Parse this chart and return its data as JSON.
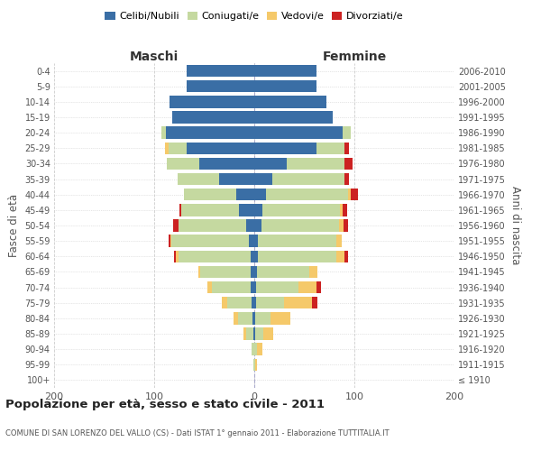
{
  "age_groups": [
    "100+",
    "95-99",
    "90-94",
    "85-89",
    "80-84",
    "75-79",
    "70-74",
    "65-69",
    "60-64",
    "55-59",
    "50-54",
    "45-49",
    "40-44",
    "35-39",
    "30-34",
    "25-29",
    "20-24",
    "15-19",
    "10-14",
    "5-9",
    "0-4"
  ],
  "birth_years": [
    "≤ 1910",
    "1911-1915",
    "1916-1920",
    "1921-1925",
    "1926-1930",
    "1931-1935",
    "1936-1940",
    "1941-1945",
    "1946-1950",
    "1951-1955",
    "1956-1960",
    "1961-1965",
    "1966-1970",
    "1971-1975",
    "1976-1980",
    "1981-1985",
    "1986-1990",
    "1991-1995",
    "1996-2000",
    "2001-2005",
    "2006-2010"
  ],
  "maschi": {
    "celibi": [
      0,
      0,
      0,
      1,
      2,
      3,
      4,
      4,
      4,
      5,
      8,
      15,
      18,
      35,
      55,
      68,
      88,
      82,
      85,
      68,
      68
    ],
    "coniugati": [
      0,
      1,
      3,
      7,
      14,
      24,
      38,
      50,
      72,
      78,
      68,
      58,
      52,
      42,
      32,
      18,
      5,
      0,
      0,
      0,
      0
    ],
    "vedovi": [
      0,
      0,
      0,
      3,
      5,
      5,
      5,
      2,
      2,
      1,
      0,
      0,
      0,
      0,
      0,
      3,
      0,
      0,
      0,
      0,
      0
    ],
    "divorziati": [
      0,
      0,
      0,
      0,
      0,
      0,
      0,
      0,
      2,
      2,
      5,
      2,
      0,
      0,
      0,
      0,
      0,
      0,
      0,
      0,
      0
    ]
  },
  "femmine": {
    "nubili": [
      0,
      0,
      0,
      1,
      1,
      2,
      2,
      3,
      4,
      4,
      7,
      8,
      12,
      18,
      32,
      62,
      88,
      78,
      72,
      62,
      62
    ],
    "coniugate": [
      0,
      1,
      3,
      8,
      15,
      28,
      42,
      52,
      78,
      78,
      78,
      78,
      82,
      72,
      58,
      28,
      8,
      0,
      0,
      0,
      0
    ],
    "vedove": [
      0,
      2,
      5,
      10,
      20,
      28,
      18,
      8,
      8,
      5,
      4,
      2,
      2,
      0,
      0,
      0,
      0,
      0,
      0,
      0,
      0
    ],
    "divorziate": [
      0,
      0,
      0,
      0,
      0,
      5,
      5,
      0,
      4,
      0,
      5,
      5,
      8,
      5,
      8,
      5,
      0,
      0,
      0,
      0,
      0
    ]
  },
  "colors": {
    "celibi": "#3a6ea5",
    "coniugati": "#c5d9a0",
    "vedovi": "#f5c96a",
    "divorziati": "#cc2222"
  },
  "title": "Popolazione per età, sesso e stato civile - 2011",
  "subtitle": "COMUNE DI SAN LORENZO DEL VALLO (CS) - Dati ISTAT 1° gennaio 2011 - Elaborazione TUTTITALIA.IT",
  "xlabel_left": "Maschi",
  "xlabel_right": "Femmine",
  "ylabel_left": "Fasce di età",
  "ylabel_right": "Anni di nascita",
  "legend_labels": [
    "Celibi/Nubili",
    "Coniugati/e",
    "Vedovi/e",
    "Divorziati/e"
  ],
  "xlim": 200,
  "bg_color": "#ffffff",
  "grid_color": "#cccccc"
}
